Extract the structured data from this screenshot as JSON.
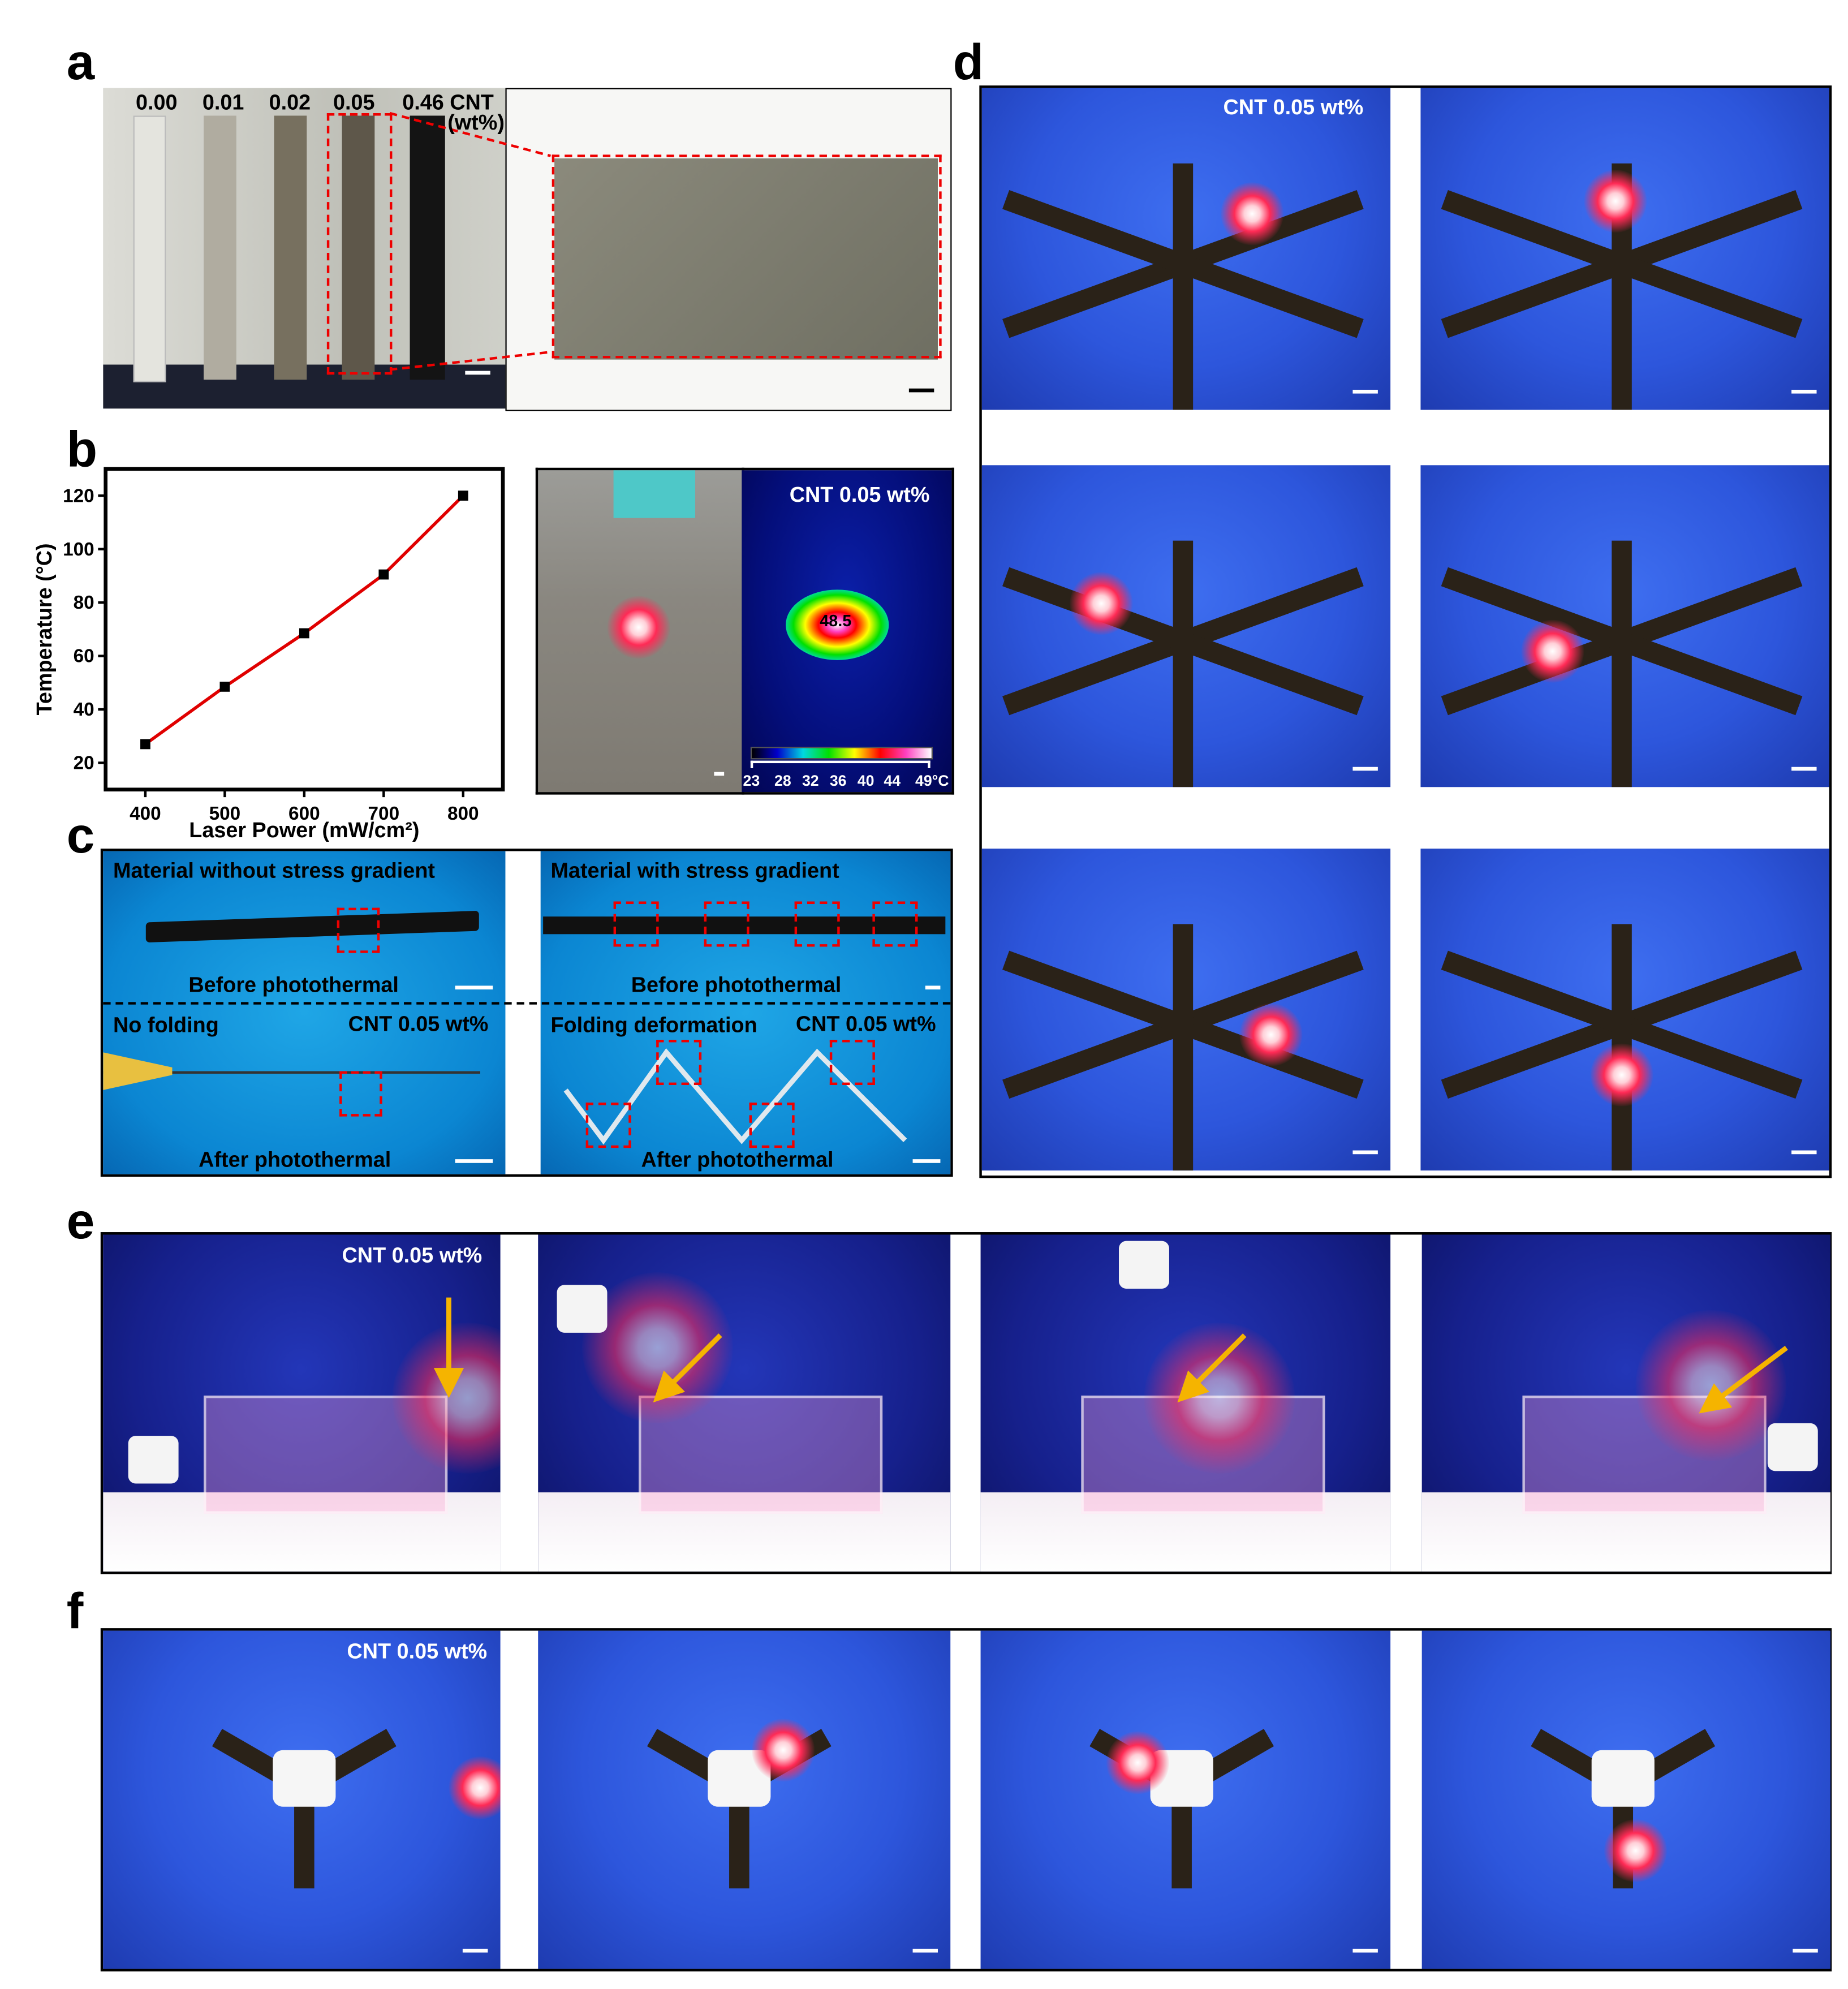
{
  "panels": {
    "a": {
      "label": "a",
      "concentrations": [
        "0.00",
        "0.01",
        "0.02",
        "0.05",
        "0.46 CNT"
      ],
      "unit": "(wt%)"
    },
    "b": {
      "label": "b",
      "thermal_title": "CNT 0.05 wt%",
      "spot_temp": "48.5",
      "colorbar_ticks": [
        "23",
        "28",
        "32",
        "36",
        "40",
        "44",
        "49°C"
      ],
      "colorbar_colors": [
        "#000000",
        "#0000cc",
        "#00d8e0",
        "#00e000",
        "#ffff00",
        "#ff0000",
        "#ff40c0",
        "#ffffff"
      ]
    },
    "c": {
      "label": "c",
      "left_top": "Material without stress gradient",
      "right_top": "Material with stress gradient",
      "before_left": "Before photothermal",
      "before_right": "Before photothermal",
      "left_bottom": "No folding",
      "left_bottom_cnt": "CNT 0.05 wt%",
      "right_bottom": "Folding deformation",
      "right_bottom_cnt": "CNT 0.05 wt%",
      "after_left": "After photothermal",
      "after_right": "After photothermal"
    },
    "d": {
      "label": "d",
      "cnt": "CNT 0.05 wt%"
    },
    "e": {
      "label": "e",
      "cnt": "CNT 0.05 wt%"
    },
    "f": {
      "label": "f",
      "cnt": "CNT 0.05 wt%"
    }
  },
  "chart_data": {
    "type": "line",
    "xlabel": "Laser Power (mW/cm²)",
    "ylabel": "Temperature (°C)",
    "x": [
      400,
      500,
      600,
      700,
      800
    ],
    "y": [
      27,
      48.5,
      68.5,
      90.5,
      120
    ],
    "xlim": [
      350,
      850
    ],
    "ylim": [
      10,
      130
    ],
    "xticks": [
      "400",
      "500",
      "600",
      "700",
      "800"
    ],
    "yticks": [
      "20",
      "40",
      "60",
      "80",
      "100",
      "120"
    ],
    "line_color": "#e00000",
    "marker": "square",
    "marker_color": "#000000",
    "grid": false
  }
}
